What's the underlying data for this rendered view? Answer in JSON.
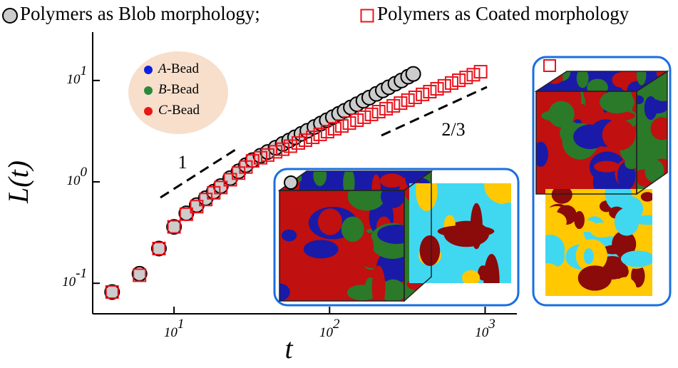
{
  "chart_data": {
    "type": "scatter",
    "xlabel": "t",
    "ylabel": "L(t)",
    "xscale": "log",
    "yscale": "log",
    "xlim": [
      3,
      1600
    ],
    "ylim": [
      0.05,
      30
    ],
    "xticks": [
      {
        "value": 10,
        "label": "10",
        "exponent": "1"
      },
      {
        "value": 100,
        "label": "10",
        "exponent": "2"
      },
      {
        "value": 1000,
        "label": "10",
        "exponent": "3"
      }
    ],
    "yticks": [
      {
        "value": 0.1,
        "label": "10",
        "exponent": "-1"
      },
      {
        "value": 1,
        "label": "10",
        "exponent": "0"
      },
      {
        "value": 10,
        "label": "10",
        "exponent": "1"
      }
    ],
    "series": [
      {
        "name": "Polymers as Blob morphology;",
        "marker": "circle",
        "color": "#cccccc",
        "x": [
          4,
          6,
          8,
          10,
          12,
          14,
          16,
          18,
          20,
          23,
          26,
          29,
          32,
          36,
          40,
          45,
          50,
          55,
          60,
          66,
          72,
          80,
          88,
          96,
          105,
          115,
          125,
          137,
          150,
          165,
          180,
          200,
          220,
          240,
          265,
          290,
          320,
          345
        ],
        "values": [
          0.082,
          0.124,
          0.22,
          0.36,
          0.49,
          0.59,
          0.69,
          0.8,
          0.91,
          1.09,
          1.27,
          1.46,
          1.64,
          1.81,
          1.97,
          2.17,
          2.37,
          2.56,
          2.75,
          2.98,
          3.19,
          3.48,
          3.77,
          4.05,
          4.35,
          4.7,
          5.02,
          5.42,
          5.83,
          6.31,
          6.78,
          7.38,
          7.98,
          8.57,
          9.3,
          10.0,
          10.9,
          11.6
        ]
      },
      {
        "name": "Polymers as Coated morphology",
        "marker": "square",
        "color": "#e8141e",
        "x": [
          4,
          6,
          8,
          10,
          12,
          14,
          16,
          18,
          20,
          23,
          26,
          29,
          32,
          36,
          40,
          45,
          50,
          56,
          63,
          70,
          78,
          87,
          97,
          108,
          120,
          134,
          150,
          167,
          186,
          207,
          231,
          257,
          286,
          319,
          355,
          396,
          441,
          491,
          547,
          609,
          678,
          755,
          840,
          935
        ],
        "values": [
          0.082,
          0.12,
          0.22,
          0.36,
          0.48,
          0.57,
          0.67,
          0.78,
          0.88,
          1.05,
          1.22,
          1.4,
          1.61,
          1.73,
          1.84,
          1.98,
          2.1,
          2.25,
          2.42,
          2.58,
          2.75,
          2.94,
          3.13,
          3.34,
          3.56,
          3.8,
          4.06,
          4.34,
          4.63,
          4.93,
          5.27,
          5.62,
          5.98,
          6.4,
          6.82,
          7.29,
          7.76,
          8.28,
          8.85,
          9.44,
          10.05,
          10.7,
          11.4,
          12.2
        ]
      }
    ],
    "annotations": [
      {
        "text": "1"
      },
      {
        "text": "2/3"
      }
    ],
    "inset_legend": [
      {
        "letter": "A",
        "text": "-Bead",
        "color": "#1020e0"
      },
      {
        "letter": "B",
        "text": "-Bead",
        "color": "#2a8a3a"
      },
      {
        "letter": "C",
        "text": "-Bead",
        "color": "#e81818"
      }
    ]
  }
}
